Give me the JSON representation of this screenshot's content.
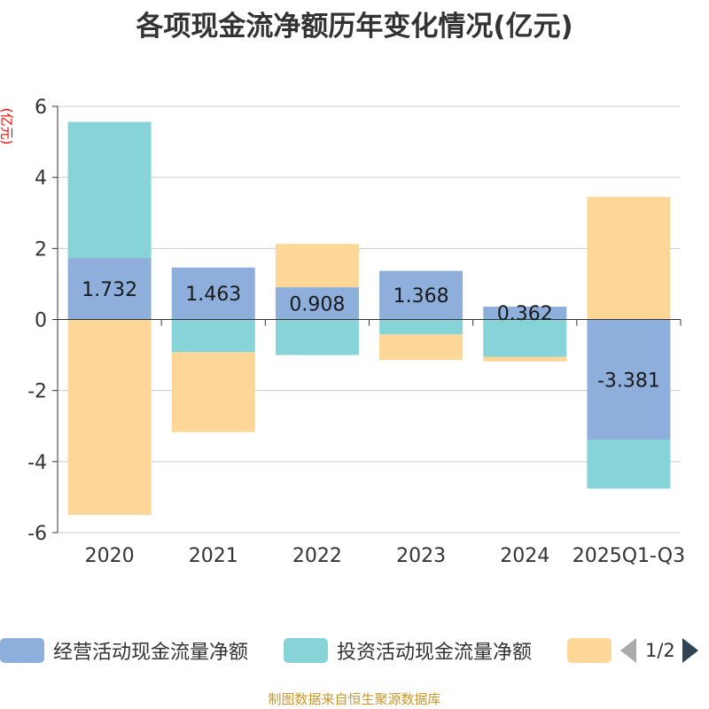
{
  "chart_data": {
    "type": "bar",
    "stacked": true,
    "title": "各项现金流净额历年变化情况(亿元)",
    "ylabel": "(亿元)",
    "ylim": [
      -6,
      6
    ],
    "yticks": [
      6,
      4,
      2,
      0,
      -2,
      -4,
      -6
    ],
    "grid": true,
    "legend_position": "bottom",
    "categories": [
      "2020",
      "2021",
      "2022",
      "2023",
      "2024",
      "2025Q1-Q3"
    ],
    "series": [
      {
        "name": "经营活动现金流量净额",
        "color": "#8eaedb",
        "values": [
          1.732,
          1.463,
          0.908,
          1.368,
          0.362,
          -3.381
        ],
        "labels": [
          "1.732",
          "1.463",
          "0.908",
          "1.368",
          "0.362",
          "-3.381"
        ]
      },
      {
        "name": "投资活动现金流量净额",
        "color": "#86d4d8",
        "values": [
          3.83,
          -0.92,
          -1.0,
          -0.42,
          -1.05,
          -1.38
        ]
      },
      {
        "name": "",
        "color": "#fdd797",
        "values": [
          -5.5,
          -2.25,
          1.22,
          -0.72,
          -0.13,
          3.45
        ]
      }
    ]
  },
  "legend": {
    "page": "1/2"
  },
  "footer": "制图数据来自恒生聚源数据库"
}
